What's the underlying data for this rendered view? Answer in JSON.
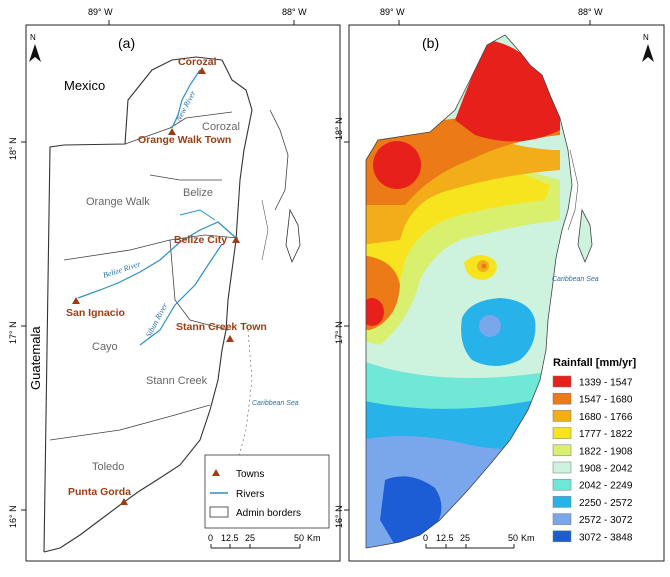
{
  "panel_a": {
    "label": "(a)",
    "lon_ticks": [
      "89° W",
      "88° W"
    ],
    "lat_ticks": [
      "18° N",
      "17° N",
      "16° N"
    ],
    "north_label": "N",
    "countries": {
      "mexico": "Mexico",
      "guatemala": "Guatemala"
    },
    "districts": [
      "Corozal",
      "Orange Walk",
      "Belize",
      "Cayo",
      "Stann Creek",
      "Toledo"
    ],
    "towns": [
      "Corozal",
      "Orange Walk Town",
      "Belize City",
      "San Ignacio",
      "Stann Creek Town",
      "Punta Gorda"
    ],
    "rivers": [
      "New River",
      "Belize River",
      "Sibun River"
    ],
    "sea_label": "Caribbean Sea",
    "legend": {
      "towns": "Towns",
      "rivers": "Rivers",
      "borders": "Admin borders"
    },
    "scale": {
      "ticks": [
        "0",
        "12.5",
        "25",
        "50"
      ],
      "unit": "Km"
    }
  },
  "panel_b": {
    "label": "(b)",
    "lon_ticks": [
      "89° W",
      "88° W"
    ],
    "lat_ticks": [
      "18° N",
      "17° N",
      "16° N"
    ],
    "north_label": "N",
    "sea_label": "Caribbean Sea",
    "legend_title": "Rainfall [mm/yr]",
    "classes": [
      {
        "range": "1339 - 1547",
        "color": "#e8201c"
      },
      {
        "range": "1547 - 1680",
        "color": "#ec7a16"
      },
      {
        "range": "1680 - 1766",
        "color": "#f2ad18"
      },
      {
        "range": "1777 - 1822",
        "color": "#f7e41f"
      },
      {
        "range": "1822 - 1908",
        "color": "#d8f06e"
      },
      {
        "range": "1908 - 2042",
        "color": "#cdf2de"
      },
      {
        "range": "2042 - 2249",
        "color": "#6fe8d8"
      },
      {
        "range": "2250 - 2572",
        "color": "#27b2ea"
      },
      {
        "range": "2572 - 3072",
        "color": "#7aa6ec"
      },
      {
        "range": "3072 - 3848",
        "color": "#1c5dd6"
      }
    ],
    "scale": {
      "ticks": [
        "0",
        "12.5",
        "25",
        "50"
      ],
      "unit": "Km"
    }
  }
}
